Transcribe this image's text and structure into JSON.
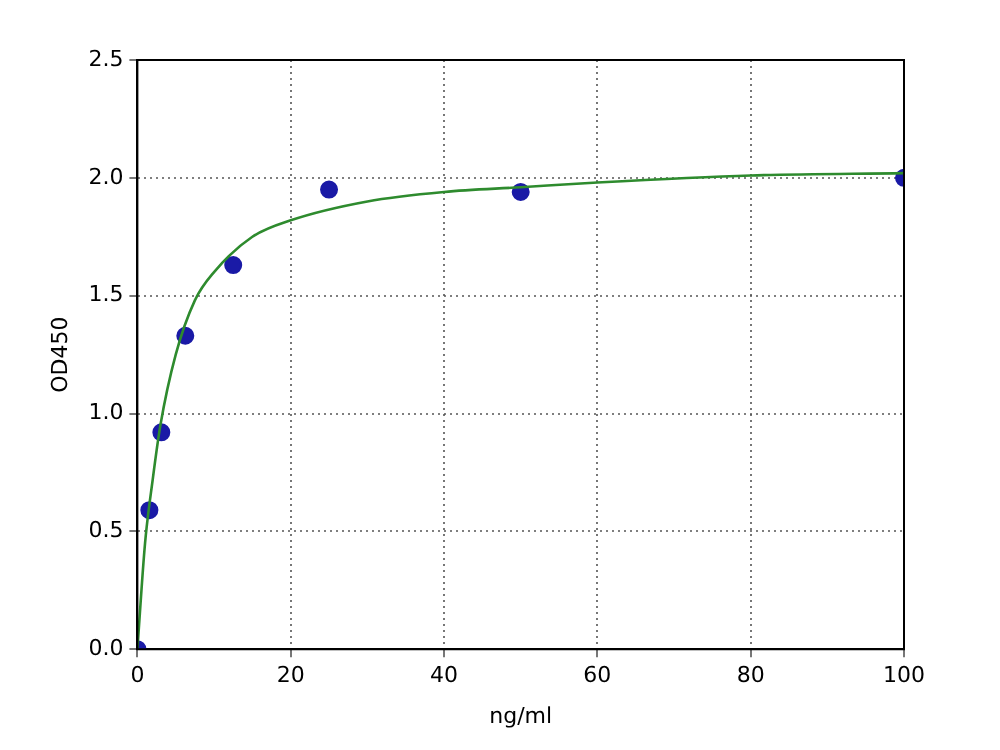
{
  "chart_data": {
    "type": "scatter",
    "xlabel": "ng/ml",
    "ylabel": "OD450",
    "xlim": [
      0,
      100
    ],
    "xticks": [
      0,
      20,
      40,
      60,
      80,
      100
    ],
    "ylim": [
      0,
      2.5
    ],
    "yticks": [
      {
        "value": 0,
        "label": "0.0"
      },
      {
        "value": 0.5,
        "label": "0.5"
      },
      {
        "value": 1,
        "label": "1.0"
      },
      {
        "value": 1.5,
        "label": "1.5"
      },
      {
        "value": 2,
        "label": "2.0"
      },
      {
        "value": 2.5,
        "label": "2.5"
      }
    ],
    "grid": true,
    "legend": false,
    "series": [
      {
        "type": "line",
        "color": "#2e8b2e",
        "marker": "none",
        "line_style": "solid",
        "x": [
          0,
          1,
          2,
          3,
          5,
          7.5,
          10,
          15,
          20,
          30,
          40,
          50,
          60,
          80,
          100
        ],
        "values": [
          0,
          0.45,
          0.72,
          0.95,
          1.25,
          1.48,
          1.6,
          1.75,
          1.82,
          1.9,
          1.94,
          1.96,
          1.98,
          2.01,
          2.02
        ]
      },
      {
        "type": "scatter",
        "color": "#1a1aa6",
        "marker": "circle",
        "x": [
          0,
          1.5625,
          3.125,
          6.25,
          12.5,
          25,
          50,
          100
        ],
        "values": [
          0,
          0.59,
          0.92,
          1.33,
          1.63,
          1.95,
          1.94,
          2.0
        ]
      }
    ]
  }
}
